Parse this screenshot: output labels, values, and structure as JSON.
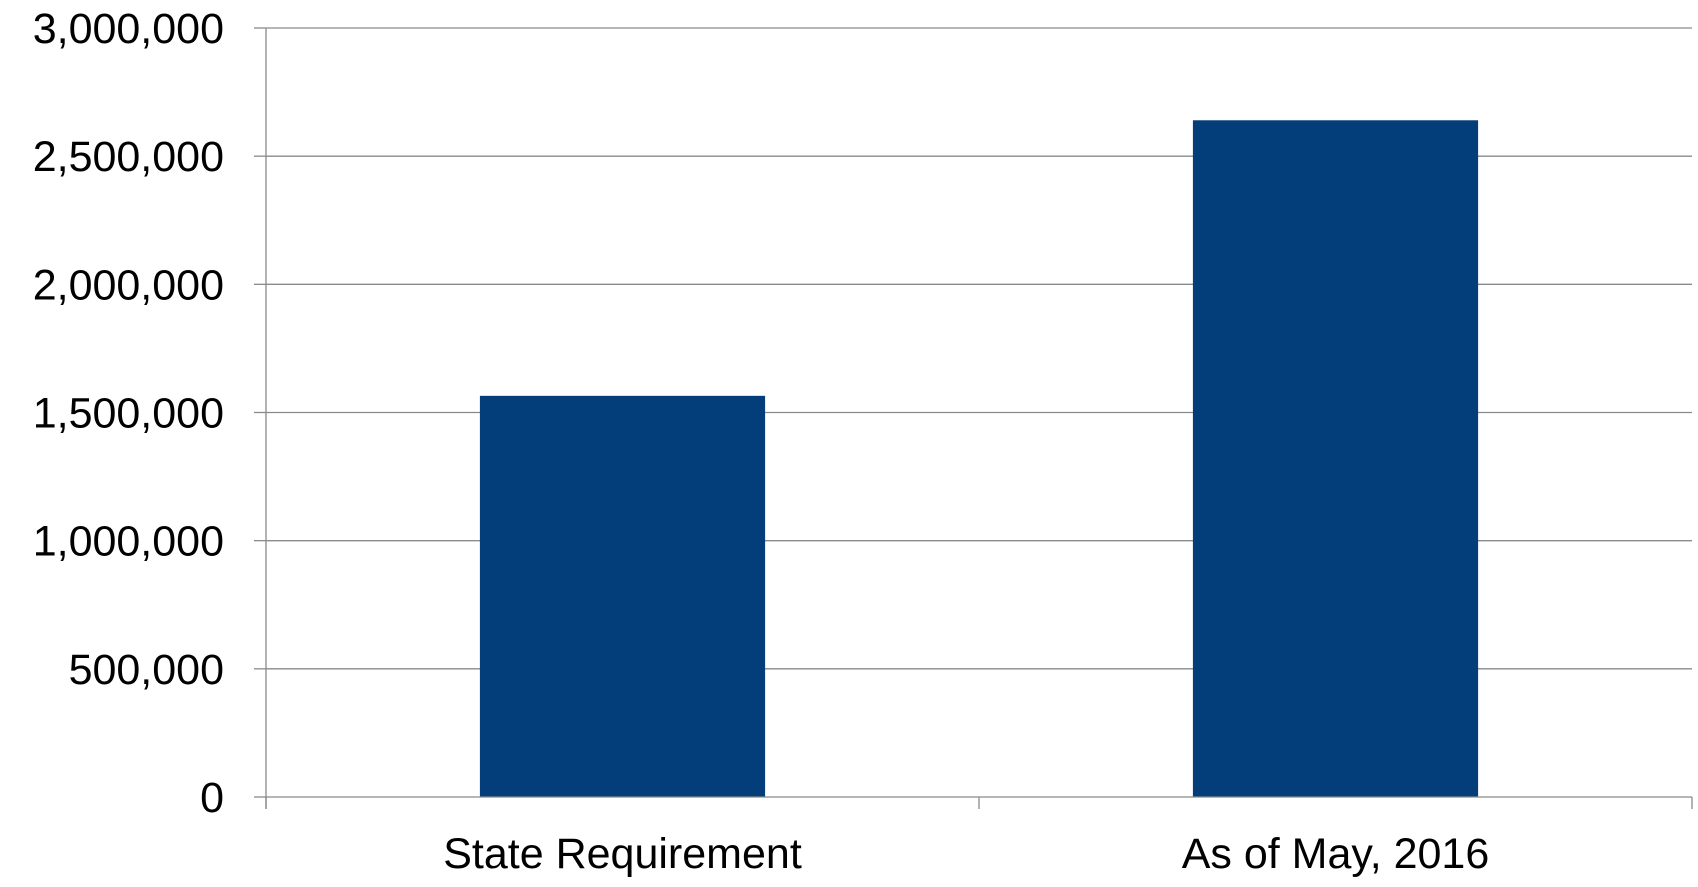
{
  "chart_data": {
    "type": "bar",
    "title": "",
    "xlabel": "",
    "ylabel": "",
    "categories": [
      "State Requirement",
      "As of May, 2016"
    ],
    "values": [
      1565000,
      2640000
    ],
    "ylim": [
      0,
      3000000
    ],
    "yticks": [
      0,
      500000,
      1000000,
      1500000,
      2000000,
      2500000,
      3000000
    ],
    "ytick_labels": [
      "0",
      "500,000",
      "1,000,000",
      "1,500,000",
      "2,000,000",
      "2,500,000",
      "3,000,000"
    ],
    "grid": true,
    "legend": "none"
  },
  "colors": {
    "bar": "#033d7a",
    "grid": "#8a8a8a",
    "axis": "#8a8a8a"
  }
}
